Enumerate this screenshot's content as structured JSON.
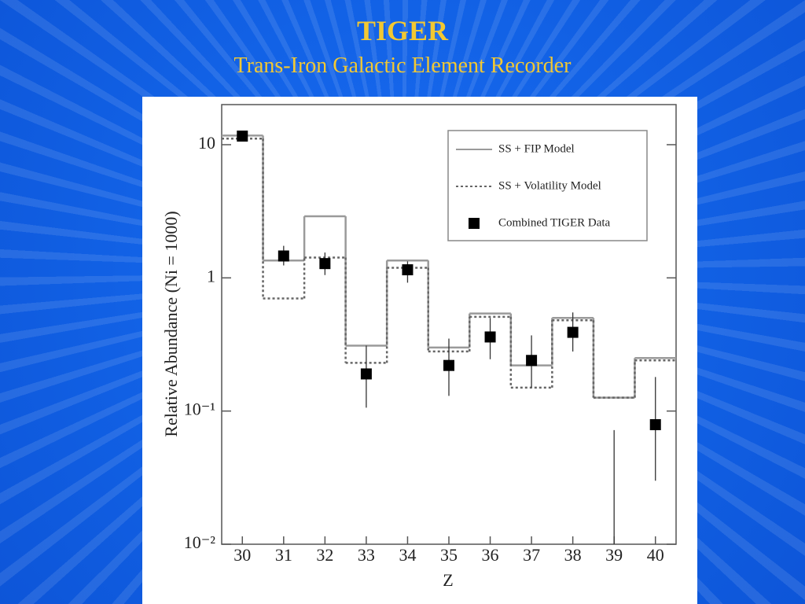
{
  "header": {
    "title": "TIGER",
    "subtitle": "Trans-Iron Galactic Element Recorder"
  },
  "chart_data": {
    "type": "step",
    "x_label": "Z",
    "y_label": "Relative Abundance (Ni = 1000)",
    "x": [
      30,
      31,
      32,
      33,
      34,
      35,
      36,
      37,
      38,
      39,
      40
    ],
    "xlim": [
      29.5,
      40.5
    ],
    "xticks": [
      30,
      31,
      32,
      33,
      34,
      35,
      36,
      37,
      38,
      39,
      40
    ],
    "ylim": [
      0.01,
      20
    ],
    "log_y": true,
    "yticks": [
      {
        "value": 0.01,
        "label": "10⁻²"
      },
      {
        "value": 0.1,
        "label": "10⁻¹"
      },
      1,
      10
    ],
    "legend": "top-right",
    "series": [
      {
        "name": "SS + FIP Model",
        "style": "step",
        "color": "#9a9a9a",
        "dash": "solid",
        "values": [
          11.7,
          1.35,
          2.9,
          0.31,
          1.35,
          0.3,
          0.54,
          0.22,
          0.5,
          0.126,
          0.25
        ]
      },
      {
        "name": "SS + Volatility Model",
        "style": "step",
        "color": "#666666",
        "dash": "dotted",
        "values": [
          11.1,
          0.7,
          1.42,
          0.23,
          1.19,
          0.28,
          0.51,
          0.15,
          0.48,
          0.126,
          0.24
        ]
      },
      {
        "name": "Combined TIGER Data",
        "style": "points",
        "color": "#000000",
        "values": [
          11.6,
          1.46,
          1.28,
          0.19,
          1.15,
          0.22,
          0.36,
          0.24,
          0.39,
          null,
          0.079
        ],
        "err_low": [
          null,
          1.24,
          1.05,
          0.106,
          0.92,
          0.13,
          0.245,
          0.15,
          0.28,
          0.01,
          0.03
        ],
        "err_high": [
          null,
          1.74,
          1.55,
          0.31,
          1.33,
          0.35,
          0.5,
          0.37,
          0.55,
          0.072,
          0.18
        ]
      }
    ]
  }
}
